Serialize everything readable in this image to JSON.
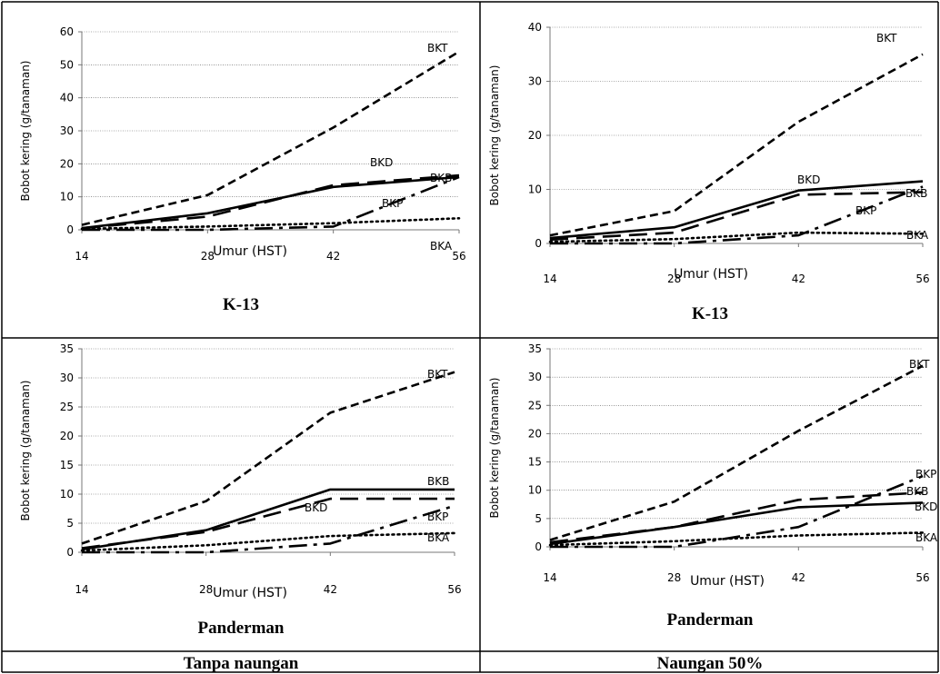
{
  "figure": {
    "ylabel": "Bobot kering (g/tanaman)",
    "xlabel": "Umur (HST)",
    "bottom_labels": [
      "Tanpa naungan",
      "Naungan 50%"
    ]
  },
  "chart_data": [
    {
      "type": "line",
      "caption": "K-13",
      "column": "Tanpa naungan",
      "ylabel": "Bobot kering (g/tanaman)",
      "xlabel": "Umur (HST)",
      "x": [
        14,
        28,
        42,
        56
      ],
      "ylim": [
        0,
        60
      ],
      "yticks": [
        0,
        10,
        20,
        30,
        40,
        50,
        60
      ],
      "grid": true,
      "series": [
        {
          "name": "BKT",
          "style": "dashed",
          "values": [
            1.5,
            10.5,
            31,
            54
          ]
        },
        {
          "name": "BKD",
          "style": "solid",
          "values": [
            0.5,
            5,
            13,
            16
          ]
        },
        {
          "name": "BKB",
          "style": "longdash",
          "values": [
            0.5,
            4,
            13.5,
            16.5
          ]
        },
        {
          "name": "BKP",
          "style": "dashdot",
          "values": [
            0,
            0,
            1,
            16
          ]
        },
        {
          "name": "BKA",
          "style": "dotted",
          "values": [
            0.3,
            1,
            2,
            3.5
          ]
        }
      ]
    },
    {
      "type": "line",
      "caption": "K-13",
      "column": "Naungan 50%",
      "ylabel": "Bobot kering (g/tanaman)",
      "xlabel": "Umur (HST)",
      "x": [
        14,
        28,
        42,
        56
      ],
      "ylim": [
        0,
        40
      ],
      "yticks": [
        0,
        10,
        20,
        30,
        40
      ],
      "grid": true,
      "series": [
        {
          "name": "BKT",
          "style": "dashed",
          "values": [
            1.5,
            6,
            22.5,
            35
          ]
        },
        {
          "name": "BKD",
          "style": "solid",
          "values": [
            1,
            3,
            9.8,
            11.5
          ]
        },
        {
          "name": "BKB",
          "style": "longdash",
          "values": [
            0.7,
            2,
            9,
            9.5
          ]
        },
        {
          "name": "BKP",
          "style": "dashdot",
          "values": [
            0,
            0,
            1.5,
            10.5
          ]
        },
        {
          "name": "BKA",
          "style": "dotted",
          "values": [
            0.3,
            0.8,
            2,
            1.8
          ]
        }
      ]
    },
    {
      "type": "line",
      "caption": "Panderman",
      "column": "Tanpa naungan",
      "ylabel": "Bobot kering (g/tanaman)",
      "xlabel": "Umur (HST)",
      "x": [
        14,
        28,
        42,
        56
      ],
      "ylim": [
        0,
        35
      ],
      "yticks": [
        0,
        5,
        10,
        15,
        20,
        25,
        30,
        35
      ],
      "grid": true,
      "series": [
        {
          "name": "BKT",
          "style": "dashed",
          "values": [
            1.5,
            8.8,
            24,
            31
          ]
        },
        {
          "name": "BKB",
          "style": "solid",
          "values": [
            0.5,
            3.8,
            10.8,
            10.8
          ]
        },
        {
          "name": "BKD",
          "style": "longdash",
          "values": [
            0.7,
            3.5,
            9.2,
            9.2
          ]
        },
        {
          "name": "BKP",
          "style": "dashdot",
          "values": [
            0,
            0,
            1.5,
            8
          ]
        },
        {
          "name": "BKA",
          "style": "dotted",
          "values": [
            0.3,
            1.2,
            2.8,
            3.3
          ]
        }
      ]
    },
    {
      "type": "line",
      "caption": "Panderman",
      "column": "Naungan 50%",
      "ylabel": "Bobot kering (g/tanaman)",
      "xlabel": "Umur (HST)",
      "x": [
        14,
        28,
        42,
        56
      ],
      "ylim": [
        0,
        35
      ],
      "yticks": [
        0,
        5,
        10,
        15,
        20,
        25,
        30,
        35
      ],
      "grid": true,
      "series": [
        {
          "name": "BKT",
          "style": "dashed",
          "values": [
            1.2,
            8,
            20.5,
            32
          ]
        },
        {
          "name": "BKP",
          "style": "dashdot",
          "values": [
            0,
            0,
            3.5,
            12.5
          ]
        },
        {
          "name": "BKB",
          "style": "longdash",
          "values": [
            0.8,
            3.5,
            8.3,
            9.6
          ]
        },
        {
          "name": "BKD",
          "style": "solid",
          "values": [
            0.5,
            3.5,
            7,
            7.8
          ]
        },
        {
          "name": "BKA",
          "style": "dotted",
          "values": [
            0.3,
            1,
            2,
            2.5
          ]
        }
      ]
    }
  ]
}
